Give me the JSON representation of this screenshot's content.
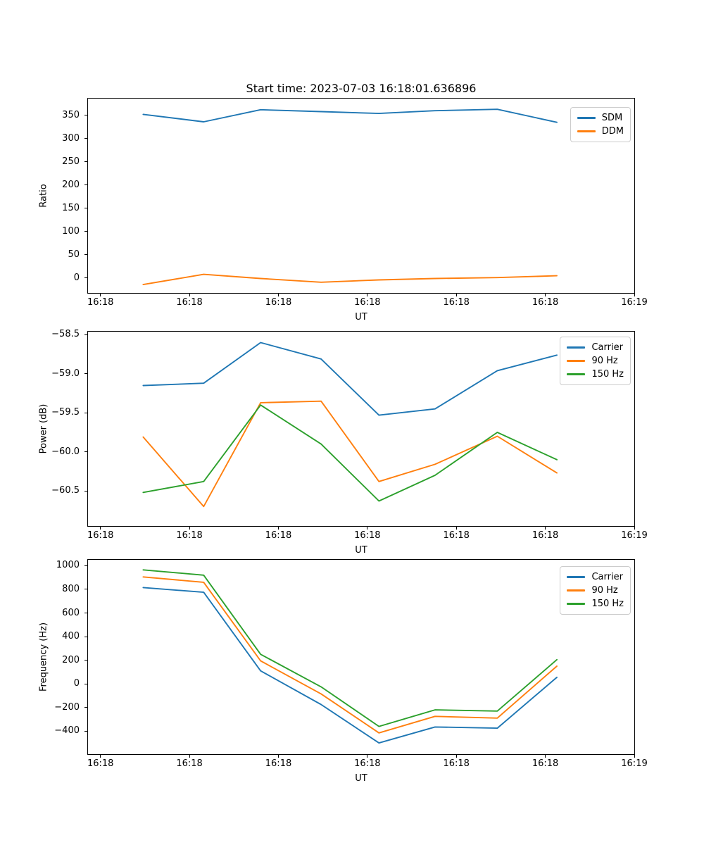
{
  "figure": {
    "title": "Start time: 2023-07-03 16:18:01.636896",
    "background": "#ffffff",
    "text_color": "#000000"
  },
  "palette": {
    "blue": "#1f77b4",
    "orange": "#ff7f0e",
    "green": "#2ca02c",
    "spine": "#000000",
    "legend_border": "#cccccc"
  },
  "x_axis": {
    "label": "UT",
    "tick_labels": [
      "16:18",
      "16:18",
      "16:18",
      "16:18",
      "16:18",
      "16:18",
      "16:19"
    ],
    "tick_seconds": [
      0,
      10,
      20,
      30,
      40,
      50,
      60
    ],
    "xlim": [
      -1.4,
      60
    ],
    "sample_seconds": [
      4.8,
      11.6,
      18.0,
      24.8,
      31.3,
      37.6,
      44.6,
      51.3
    ]
  },
  "chart_data": [
    {
      "type": "line",
      "id": "ratio-panel",
      "title": "Start time: 2023-07-03 16:18:01.636896",
      "xlabel": "UT",
      "ylabel": "Ratio",
      "x_tick_labels": [
        "16:18",
        "16:18",
        "16:18",
        "16:18",
        "16:18",
        "16:18",
        "16:19"
      ],
      "x": [
        4.8,
        11.6,
        18.0,
        24.8,
        31.3,
        37.6,
        44.6,
        51.3
      ],
      "ylim": [
        -32,
        386
      ],
      "ytick_values": [
        0,
        50,
        100,
        150,
        200,
        250,
        300,
        350
      ],
      "ytick_labels": [
        "0",
        "50",
        "100",
        "150",
        "200",
        "250",
        "300",
        "350"
      ],
      "grid": false,
      "legend_position": "upper right",
      "series": [
        {
          "name": "SDM",
          "color": "#1f77b4",
          "values": [
            352,
            336,
            362,
            358,
            354,
            360,
            363,
            335
          ]
        },
        {
          "name": "DDM",
          "color": "#ff7f0e",
          "values": [
            -14,
            8,
            -1,
            -9,
            -4,
            -1,
            1,
            5
          ]
        }
      ]
    },
    {
      "type": "line",
      "id": "power-panel",
      "title": "",
      "xlabel": "UT",
      "ylabel": "Power (dB)",
      "x_tick_labels": [
        "16:18",
        "16:18",
        "16:18",
        "16:18",
        "16:18",
        "16:18",
        "16:19"
      ],
      "x": [
        4.8,
        11.6,
        18.0,
        24.8,
        31.3,
        37.6,
        44.6,
        51.3
      ],
      "ylim": [
        -60.95,
        -58.46
      ],
      "ytick_values": [
        -58.5,
        -59.0,
        -59.5,
        -60.0,
        -60.5
      ],
      "ytick_labels": [
        "−58.5",
        "−59.0",
        "−59.5",
        "−60.0",
        "−60.5"
      ],
      "grid": false,
      "legend_position": "upper right",
      "series": [
        {
          "name": "Carrier",
          "color": "#1f77b4",
          "values": [
            -59.15,
            -59.12,
            -58.6,
            -58.81,
            -59.53,
            -59.45,
            -58.96,
            -58.76
          ]
        },
        {
          "name": "90 Hz",
          "color": "#ff7f0e",
          "values": [
            -59.81,
            -60.7,
            -59.37,
            -59.35,
            -60.38,
            -60.16,
            -59.8,
            -60.27
          ]
        },
        {
          "name": "150 Hz",
          "color": "#2ca02c",
          "values": [
            -60.52,
            -60.38,
            -59.4,
            -59.9,
            -60.63,
            -60.3,
            -59.75,
            -60.1
          ]
        }
      ]
    },
    {
      "type": "line",
      "id": "frequency-panel",
      "title": "",
      "xlabel": "UT",
      "ylabel": "Frequency (Hz)",
      "x_tick_labels": [
        "16:18",
        "16:18",
        "16:18",
        "16:18",
        "16:18",
        "16:18",
        "16:19"
      ],
      "x": [
        4.8,
        11.6,
        18.0,
        24.8,
        31.3,
        37.6,
        44.6,
        51.3
      ],
      "ylim": [
        -595,
        1050
      ],
      "ytick_values": [
        1000,
        800,
        600,
        400,
        200,
        0,
        -200,
        -400
      ],
      "ytick_labels": [
        "1000",
        "800",
        "600",
        "400",
        "200",
        "0",
        "−200",
        "−400"
      ],
      "grid": false,
      "legend_position": "upper right",
      "series": [
        {
          "name": "Carrier",
          "color": "#1f77b4",
          "values": [
            815,
            775,
            110,
            -175,
            -500,
            -365,
            -375,
            55
          ]
        },
        {
          "name": "90 Hz",
          "color": "#ff7f0e",
          "values": [
            905,
            860,
            195,
            -85,
            -415,
            -275,
            -290,
            150
          ]
        },
        {
          "name": "150 Hz",
          "color": "#2ca02c",
          "values": [
            965,
            920,
            250,
            -25,
            -360,
            -220,
            -230,
            205
          ]
        }
      ]
    }
  ]
}
